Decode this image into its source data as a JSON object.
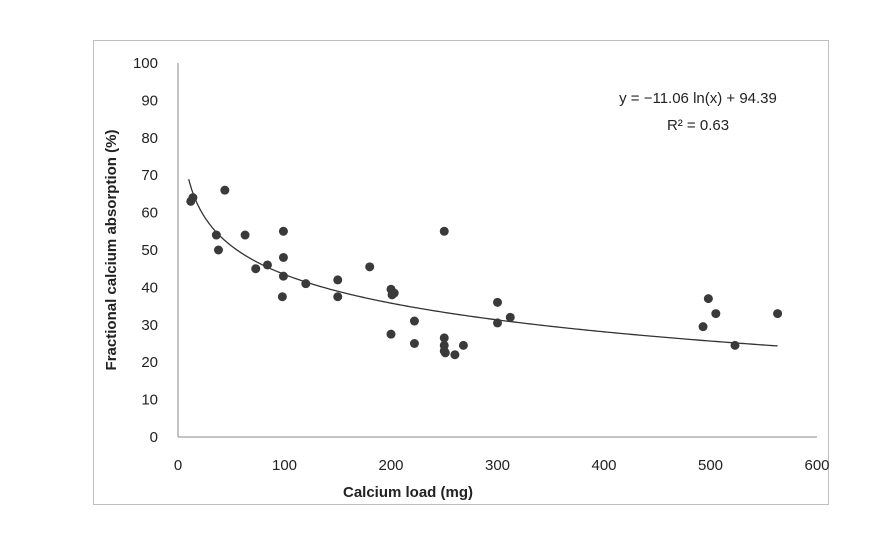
{
  "chart_data": {
    "type": "scatter",
    "xlabel": "Calcium load (mg)",
    "ylabel": "Fractional calcium absorption (%)",
    "xlim": [
      0,
      600
    ],
    "ylim": [
      0,
      100
    ],
    "x_ticks": [
      "0",
      "100",
      "200",
      "300",
      "400",
      "500",
      "600"
    ],
    "y_ticks": [
      "0",
      "10",
      "20",
      "30",
      "40",
      "50",
      "60",
      "70",
      "80",
      "90",
      "100"
    ],
    "grid": false,
    "points": [
      {
        "x": 12,
        "y": 63
      },
      {
        "x": 14,
        "y": 64
      },
      {
        "x": 36,
        "y": 54
      },
      {
        "x": 38,
        "y": 50
      },
      {
        "x": 44,
        "y": 66
      },
      {
        "x": 63,
        "y": 54
      },
      {
        "x": 73,
        "y": 45
      },
      {
        "x": 84,
        "y": 46
      },
      {
        "x": 99,
        "y": 55
      },
      {
        "x": 99,
        "y": 48
      },
      {
        "x": 99,
        "y": 43
      },
      {
        "x": 98,
        "y": 37.5
      },
      {
        "x": 120,
        "y": 41
      },
      {
        "x": 150,
        "y": 42
      },
      {
        "x": 150,
        "y": 37.5
      },
      {
        "x": 180,
        "y": 45.5
      },
      {
        "x": 200,
        "y": 39.5
      },
      {
        "x": 201,
        "y": 38
      },
      {
        "x": 203,
        "y": 38.5
      },
      {
        "x": 200,
        "y": 27.5
      },
      {
        "x": 222,
        "y": 31
      },
      {
        "x": 222,
        "y": 25
      },
      {
        "x": 250,
        "y": 55
      },
      {
        "x": 250,
        "y": 26.5
      },
      {
        "x": 250,
        "y": 24.5
      },
      {
        "x": 250,
        "y": 23
      },
      {
        "x": 251,
        "y": 22.5
      },
      {
        "x": 260,
        "y": 22
      },
      {
        "x": 268,
        "y": 24.5
      },
      {
        "x": 300,
        "y": 36
      },
      {
        "x": 300,
        "y": 30.5
      },
      {
        "x": 312,
        "y": 32
      },
      {
        "x": 493,
        "y": 29.5
      },
      {
        "x": 498,
        "y": 37
      },
      {
        "x": 505,
        "y": 33
      },
      {
        "x": 523,
        "y": 24.5
      },
      {
        "x": 563,
        "y": 33
      }
    ],
    "trendline": {
      "type": "logarithmic",
      "a": -11.06,
      "b": 94.39,
      "x_range": [
        10,
        563
      ]
    },
    "annotations": {
      "equation": "y = −11.06 ln(x) + 94.39",
      "r_squared": "R² = 0.63"
    },
    "colors": {
      "marker": "#3a3a3a",
      "line": "#333333",
      "frame": "#bfbfbf"
    }
  }
}
